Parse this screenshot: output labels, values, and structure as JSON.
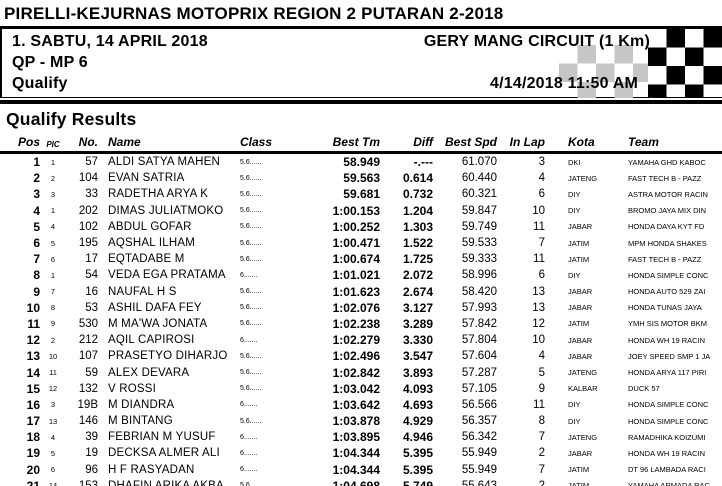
{
  "header": {
    "title": "PIRELLI-KEJURNAS MOTOPRIX REGION 2 PUTARAN 2-2018",
    "session_date": "1. SABTU, 14 APRIL 2018",
    "circuit": "GERY MANG CIRCUIT (1 Km)",
    "session_class": "QP - MP 6",
    "session_type": "Qualify",
    "print_datetime": "4/14/2018  11:50 AM",
    "flag_black": "#000000",
    "flag_gray": "#c6c6c6"
  },
  "results": {
    "heading": "Qualify Results",
    "columns": {
      "pos": "Pos",
      "pic": "PIC",
      "no": "No.",
      "name": "Name",
      "class": "Class",
      "best_tm": "Best Tm",
      "diff": "Diff",
      "best_spd": "Best Spd",
      "in_lap": "In Lap",
      "kota": "Kota",
      "team": "Team"
    },
    "rows": [
      {
        "pos": "1",
        "pic": "1",
        "no": "57",
        "class": "5.6......",
        "name": "ALDI SATYA MAHEN",
        "best_tm": "58.949",
        "diff": "-.---",
        "best_spd": "61.070",
        "in_lap": "3",
        "kota": "DKI",
        "team": "YAMAHA GHD KABOC"
      },
      {
        "pos": "2",
        "pic": "2",
        "no": "104",
        "class": "5.6......",
        "name": "EVAN SATRIA",
        "best_tm": "59.563",
        "diff": "0.614",
        "best_spd": "60.440",
        "in_lap": "4",
        "kota": "JATENG",
        "team": "FAST TECH B - PAZZ"
      },
      {
        "pos": "3",
        "pic": "3",
        "no": "33",
        "class": "5.6......",
        "name": "RADETHA ARYA K",
        "best_tm": "59.681",
        "diff": "0.732",
        "best_spd": "60.321",
        "in_lap": "6",
        "kota": "DIY",
        "team": "ASTRA MOTOR RACIN"
      },
      {
        "pos": "4",
        "pic": "1",
        "no": "202",
        "class": "5.6......",
        "name": "DIMAS JULIATMOKO",
        "best_tm": "1:00.153",
        "diff": "1.204",
        "best_spd": "59.847",
        "in_lap": "10",
        "kota": "DIY",
        "team": "BROMO JAYA MIX DIN"
      },
      {
        "pos": "5",
        "pic": "4",
        "no": "102",
        "class": "5.6......",
        "name": "ABDUL GOFAR",
        "best_tm": "1:00.252",
        "diff": "1.303",
        "best_spd": "59.749",
        "in_lap": "11",
        "kota": "JABAR",
        "team": "HONDA DAYA KYT FD"
      },
      {
        "pos": "6",
        "pic": "5",
        "no": "195",
        "class": "5.6......",
        "name": "AQSHAL ILHAM",
        "best_tm": "1:00.471",
        "diff": "1.522",
        "best_spd": "59.533",
        "in_lap": "7",
        "kota": "JATIM",
        "team": "MPM HONDA SHAKES"
      },
      {
        "pos": "7",
        "pic": "6",
        "no": "17",
        "class": "5.6......",
        "name": "EQTADABE M",
        "best_tm": "1:00.674",
        "diff": "1.725",
        "best_spd": "59.333",
        "in_lap": "11",
        "kota": "JATIM",
        "team": "FAST TECH B - PAZZ"
      },
      {
        "pos": "8",
        "pic": "1",
        "no": "54",
        "class": "6.......",
        "name": "VEDA EGA PRATAMA",
        "best_tm": "1:01.021",
        "diff": "2.072",
        "best_spd": "58.996",
        "in_lap": "6",
        "kota": "DIY",
        "team": "HONDA SIMPLE CONC"
      },
      {
        "pos": "9",
        "pic": "7",
        "no": "16",
        "class": "5.6......",
        "name": "NAUFAL H S",
        "best_tm": "1:01.623",
        "diff": "2.674",
        "best_spd": "58.420",
        "in_lap": "13",
        "kota": "JABAR",
        "team": "HONDA AUTO 529 ZAI"
      },
      {
        "pos": "10",
        "pic": "8",
        "no": "53",
        "class": "5.6......",
        "name": "ASHIL DAFA FEY",
        "best_tm": "1:02.076",
        "diff": "3.127",
        "best_spd": "57.993",
        "in_lap": "13",
        "kota": "JABAR",
        "team": "HONDA TUNAS JAYA"
      },
      {
        "pos": "11",
        "pic": "9",
        "no": "530",
        "class": "5.6......",
        "name": "M MA'WA JONATA",
        "best_tm": "1:02.238",
        "diff": "3.289",
        "best_spd": "57.842",
        "in_lap": "12",
        "kota": "JATIM",
        "team": "YMH SIS MOTOR BKM"
      },
      {
        "pos": "12",
        "pic": "2",
        "no": "212",
        "class": "6.......",
        "name": "AQIL CAPIROSI",
        "best_tm": "1:02.279",
        "diff": "3.330",
        "best_spd": "57.804",
        "in_lap": "10",
        "kota": "JABAR",
        "team": "HONDA WH 19 RACIN"
      },
      {
        "pos": "13",
        "pic": "10",
        "no": "107",
        "class": "5.6......",
        "name": "PRASETYO DIHARJO",
        "best_tm": "1:02.496",
        "diff": "3.547",
        "best_spd": "57.604",
        "in_lap": "4",
        "kota": "JABAR",
        "team": "JOEY SPEED SMP 1 JA"
      },
      {
        "pos": "14",
        "pic": "11",
        "no": "59",
        "class": "5.6......",
        "name": "ALEX DEVARA",
        "best_tm": "1:02.842",
        "diff": "3.893",
        "best_spd": "57.287",
        "in_lap": "5",
        "kota": "JATENG",
        "team": "HONDA ARYA 117 PIRI"
      },
      {
        "pos": "15",
        "pic": "12",
        "no": "132",
        "class": "5.6......",
        "name": "V ROSSI",
        "best_tm": "1:03.042",
        "diff": "4.093",
        "best_spd": "57.105",
        "in_lap": "9",
        "kota": "KALBAR",
        "team": "DUCK 57"
      },
      {
        "pos": "16",
        "pic": "3",
        "no": "19B",
        "class": "6.......",
        "name": "M DIANDRA",
        "best_tm": "1:03.642",
        "diff": "4.693",
        "best_spd": "56.566",
        "in_lap": "11",
        "kota": "DIY",
        "team": "HONDA SIMPLE CONC"
      },
      {
        "pos": "17",
        "pic": "13",
        "no": "146",
        "class": "5.6......",
        "name": "M BINTANG",
        "best_tm": "1:03.878",
        "diff": "4.929",
        "best_spd": "56.357",
        "in_lap": "8",
        "kota": "DIY",
        "team": "HONDA SIMPLE CONC"
      },
      {
        "pos": "18",
        "pic": "4",
        "no": "39",
        "class": "6.......",
        "name": "FEBRIAN M YUSUF",
        "best_tm": "1:03.895",
        "diff": "4.946",
        "best_spd": "56.342",
        "in_lap": "7",
        "kota": "JATENG",
        "team": "RAMADHIKA KOIZUMI"
      },
      {
        "pos": "19",
        "pic": "5",
        "no": "19",
        "class": "6.......",
        "name": "DECKSA ALMER ALI",
        "best_tm": "1:04.344",
        "diff": "5.395",
        "best_spd": "55.949",
        "in_lap": "2",
        "kota": "JABAR",
        "team": "HONDA WH 19 RACIN"
      },
      {
        "pos": "20",
        "pic": "6",
        "no": "96",
        "class": "6.......",
        "name": "H F RASYADAN",
        "best_tm": "1:04.344",
        "diff": "5.395",
        "best_spd": "55.949",
        "in_lap": "7",
        "kota": "JATIM",
        "team": "DT 96 LAMBADA RACI"
      },
      {
        "pos": "21",
        "pic": "14",
        "no": "153",
        "class": "5.6......",
        "name": "DHAFIN ARIKA AKBA",
        "best_tm": "1:04.698",
        "diff": "5.749",
        "best_spd": "55.643",
        "in_lap": "2",
        "kota": "JATIM",
        "team": "YAMAHA ARMADA RAC"
      }
    ]
  }
}
